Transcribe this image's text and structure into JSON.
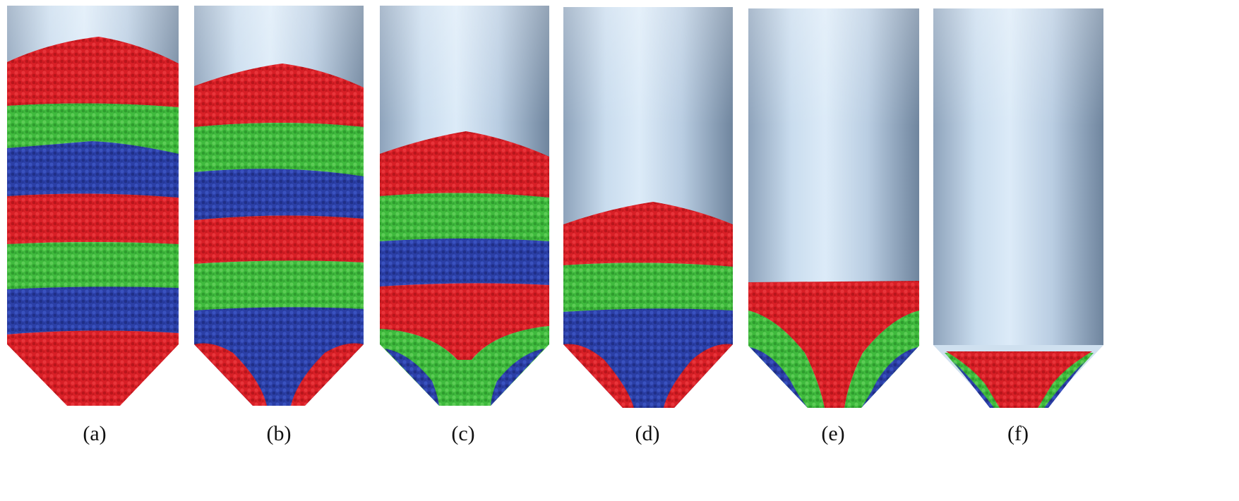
{
  "figure": {
    "panels": [
      {
        "label": "(a)",
        "layers": [
          "red",
          "green",
          "blue",
          "red",
          "green",
          "blue",
          "red"
        ]
      },
      {
        "label": "(b)",
        "layers": [
          "red",
          "green",
          "blue",
          "red",
          "green",
          "blue"
        ]
      },
      {
        "label": "(c)",
        "layers": [
          "red",
          "green",
          "blue",
          "red"
        ]
      },
      {
        "label": "(d)",
        "layers": [
          "red",
          "green",
          "blue"
        ]
      },
      {
        "label": "(e)",
        "layers": [
          "red"
        ]
      },
      {
        "label": "(f)",
        "layers": [
          "red"
        ]
      }
    ]
  },
  "colors": {
    "red": "#d81f26",
    "green": "#3fba3d",
    "blue": "#2b3fa6",
    "cylinder_light": "#dbe9f6",
    "cylinder_dark": "#7d93ab",
    "background": "#ffffff"
  }
}
